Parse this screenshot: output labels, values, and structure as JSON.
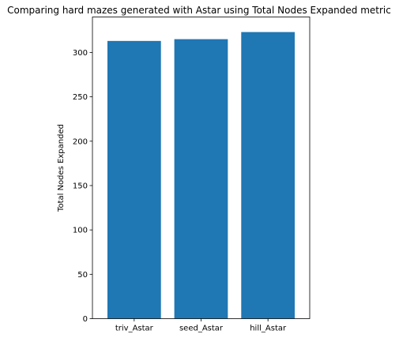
{
  "chart_data": {
    "type": "bar",
    "title": "Comparing hard mazes generated with Astar using Total Nodes Expanded metric",
    "xlabel": "",
    "ylabel": "Total Nodes Expanded",
    "categories": [
      "triv_Astar",
      "seed_Astar",
      "hill_Astar"
    ],
    "values": [
      313,
      315,
      323
    ],
    "ylim": [
      0,
      340
    ],
    "yticks": [
      0,
      50,
      100,
      150,
      200,
      250,
      300
    ],
    "grid": false,
    "legend": "none",
    "bar_color": "#1f77b4"
  }
}
